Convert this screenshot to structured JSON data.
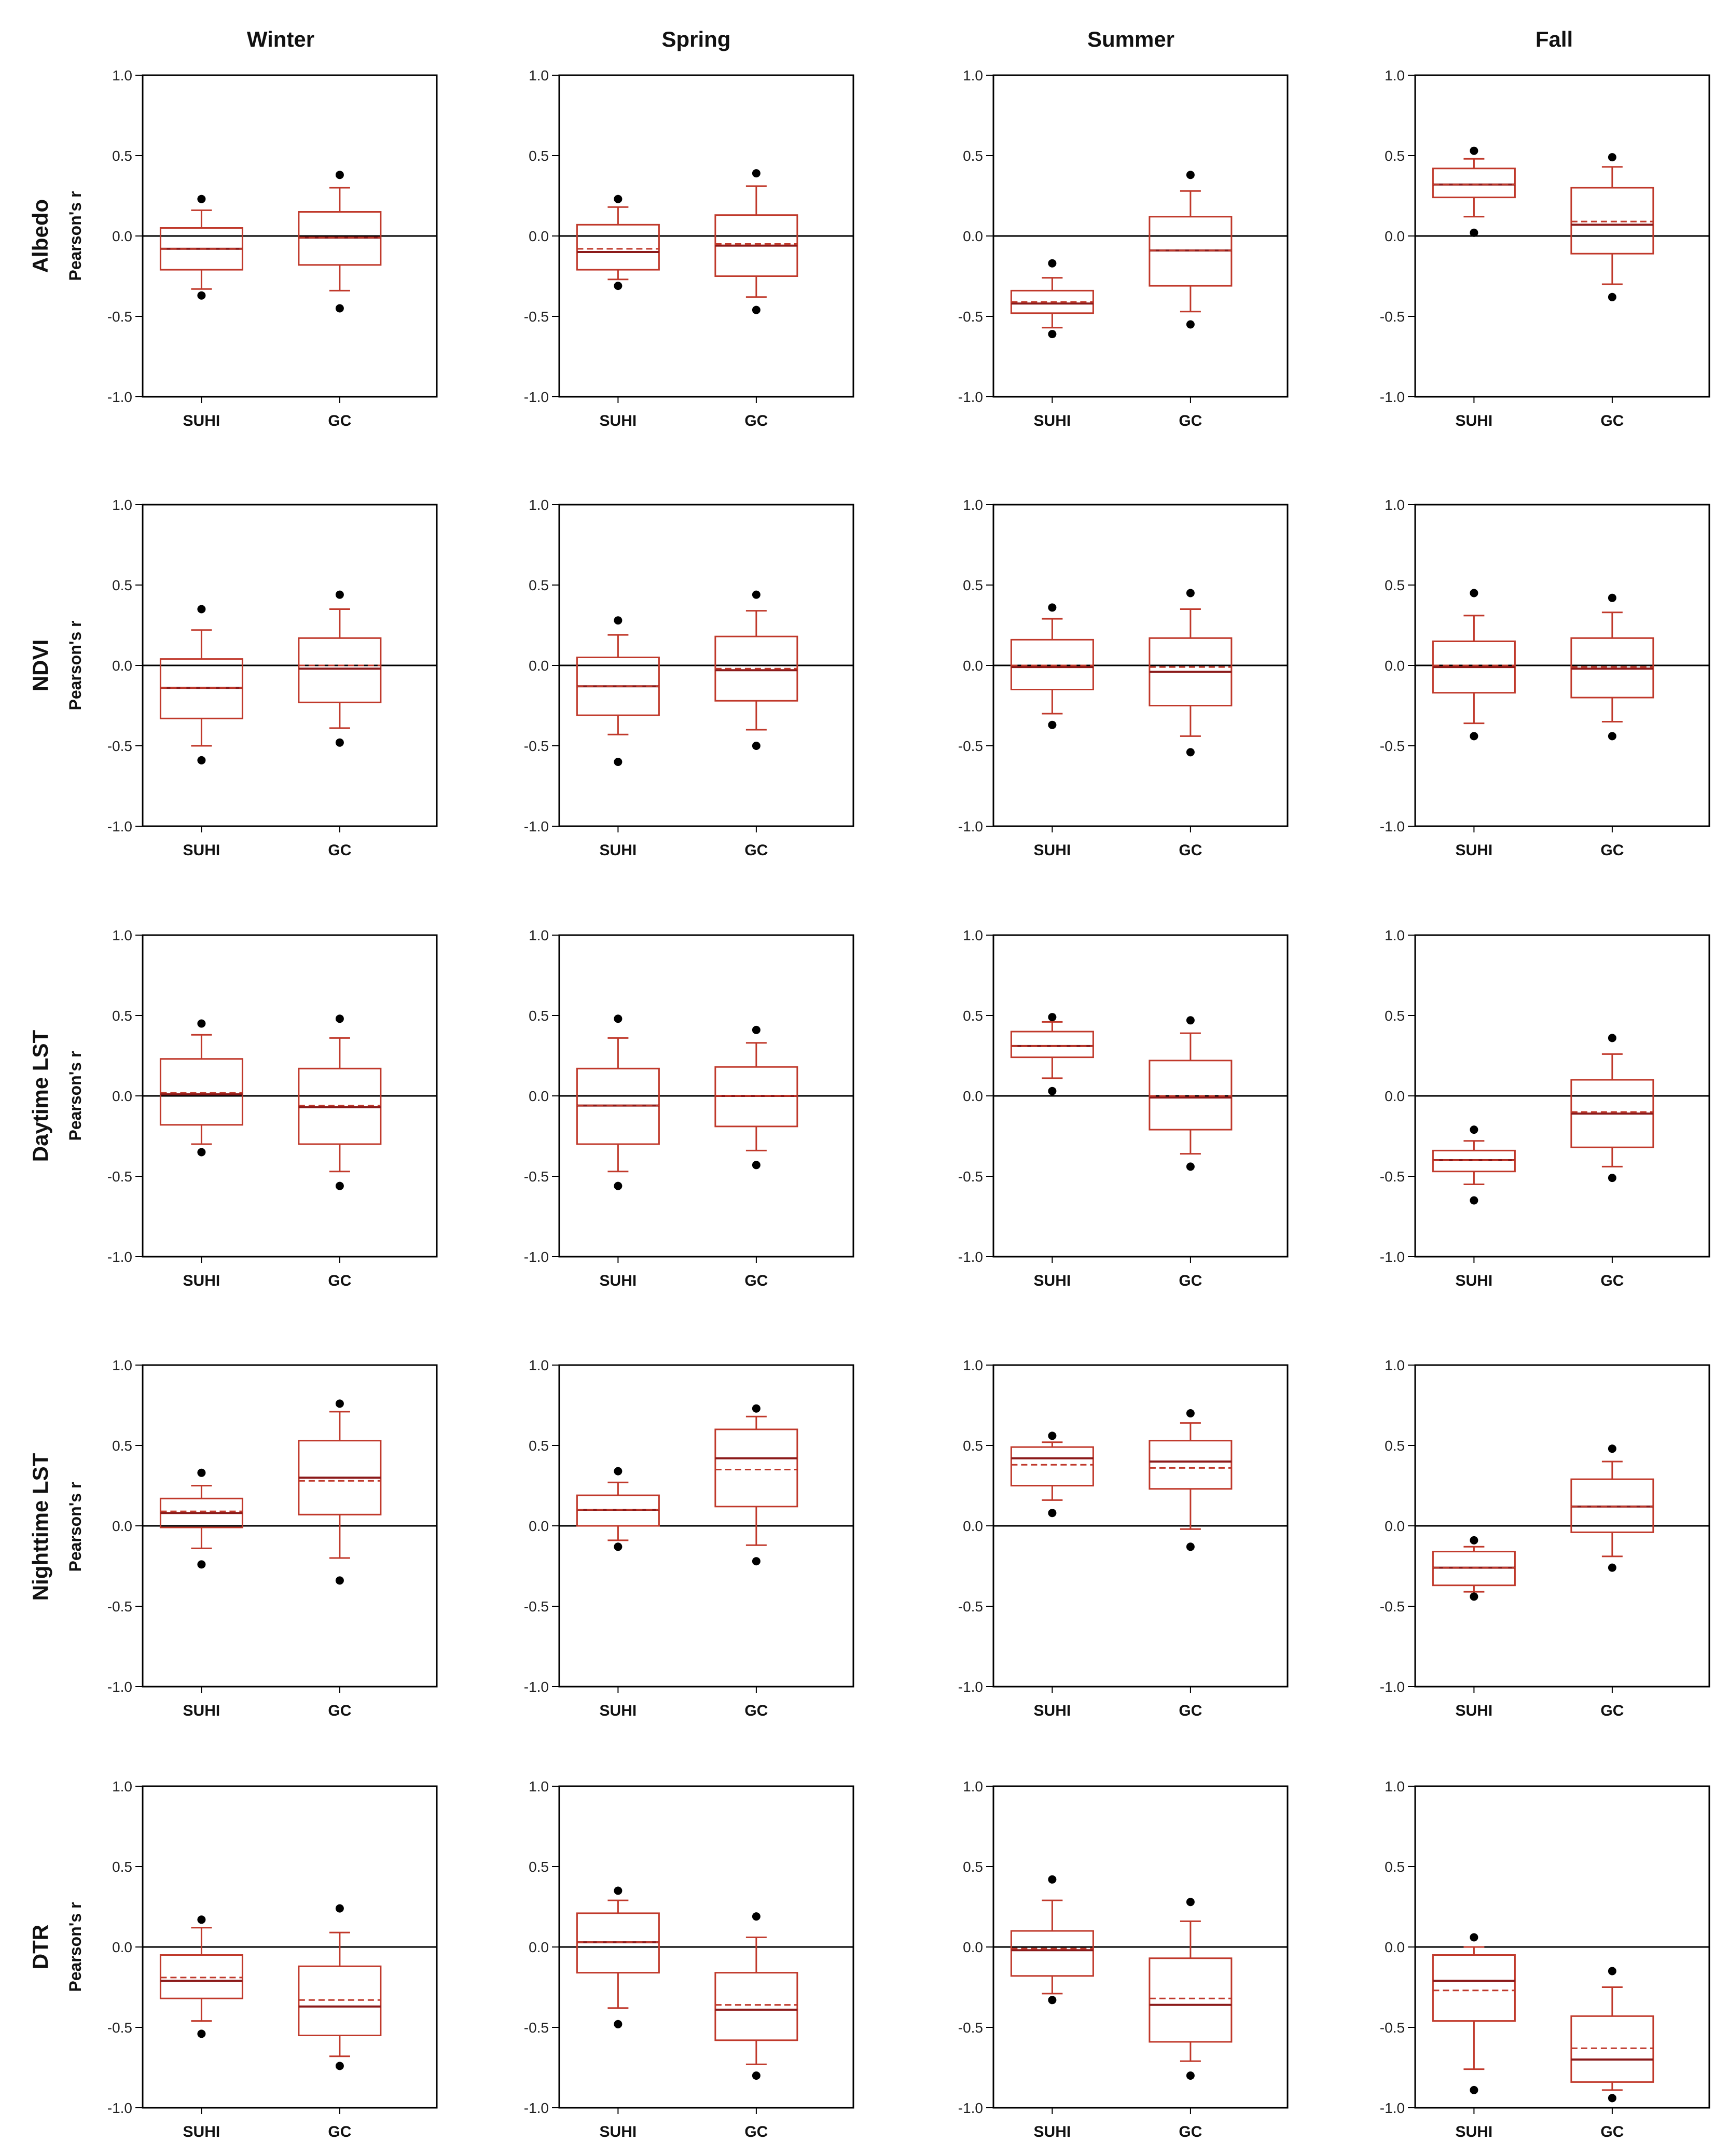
{
  "figure": {
    "columns": [
      "Winter",
      "Spring",
      "Summer",
      "Fall"
    ],
    "row_axis_label": "Pearson's r"
  },
  "colors": {
    "box": "#c0392b",
    "median_dark": "#8b1a1a",
    "outlier": "#000000",
    "axis": "#000000"
  },
  "chart_data": [
    {
      "type": "box",
      "row": "Albedo",
      "season": "Winter",
      "title": "Albedo — Winter",
      "ylabel": "Pearson's r",
      "ylim": [
        -1,
        1
      ],
      "yticks": [
        "1.0",
        "0.5",
        "0.0",
        "-0.5",
        "-1.0"
      ],
      "categories": [
        "SUHI",
        "GC"
      ],
      "boxes": [
        {
          "q1": -0.21,
          "q3": 0.05,
          "median": -0.08,
          "mean": -0.08,
          "whisker_low": -0.33,
          "whisker_high": 0.16,
          "outliers": [
            0.23,
            -0.37
          ]
        },
        {
          "q1": -0.18,
          "q3": 0.15,
          "median": -0.01,
          "mean": -0.01,
          "whisker_low": -0.34,
          "whisker_high": 0.3,
          "outliers": [
            0.38,
            -0.45
          ]
        }
      ]
    },
    {
      "type": "box",
      "row": "Albedo",
      "season": "Spring",
      "title": "Albedo — Spring",
      "ylabel": "Pearson's r",
      "ylim": [
        -1,
        1
      ],
      "yticks": [
        "1.0",
        "0.5",
        "0.0",
        "-0.5",
        "-1.0"
      ],
      "categories": [
        "SUHI",
        "GC"
      ],
      "boxes": [
        {
          "q1": -0.21,
          "q3": 0.07,
          "median": -0.1,
          "mean": -0.08,
          "whisker_low": -0.27,
          "whisker_high": 0.18,
          "outliers": [
            0.23,
            -0.31
          ]
        },
        {
          "q1": -0.25,
          "q3": 0.13,
          "median": -0.06,
          "mean": -0.05,
          "whisker_low": -0.38,
          "whisker_high": 0.31,
          "outliers": [
            0.39,
            -0.46
          ]
        }
      ]
    },
    {
      "type": "box",
      "row": "Albedo",
      "season": "Summer",
      "title": "Albedo — Summer",
      "ylabel": "Pearson's r",
      "ylim": [
        -1,
        1
      ],
      "yticks": [
        "1.0",
        "0.5",
        "0.0",
        "-0.5",
        "-1.0"
      ],
      "categories": [
        "SUHI",
        "GC"
      ],
      "boxes": [
        {
          "q1": -0.48,
          "q3": -0.34,
          "median": -0.42,
          "mean": -0.41,
          "whisker_low": -0.57,
          "whisker_high": -0.26,
          "outliers": [
            -0.17,
            -0.61
          ]
        },
        {
          "q1": -0.31,
          "q3": 0.12,
          "median": -0.09,
          "mean": -0.09,
          "whisker_low": -0.47,
          "whisker_high": 0.28,
          "outliers": [
            0.38,
            -0.55
          ]
        }
      ]
    },
    {
      "type": "box",
      "row": "Albedo",
      "season": "Fall",
      "title": "Albedo — Fall",
      "ylabel": "Pearson's r",
      "ylim": [
        -1,
        1
      ],
      "yticks": [
        "1.0",
        "0.5",
        "0.0",
        "-0.5",
        "-1.0"
      ],
      "categories": [
        "SUHI",
        "GC"
      ],
      "boxes": [
        {
          "q1": 0.24,
          "q3": 0.42,
          "median": 0.32,
          "mean": 0.32,
          "whisker_low": 0.12,
          "whisker_high": 0.48,
          "outliers": [
            0.53,
            0.02
          ]
        },
        {
          "q1": -0.11,
          "q3": 0.3,
          "median": 0.07,
          "mean": 0.09,
          "whisker_low": -0.3,
          "whisker_high": 0.43,
          "outliers": [
            0.49,
            -0.38
          ]
        }
      ]
    },
    {
      "type": "box",
      "row": "NDVI",
      "season": "Winter",
      "title": "NDVI — Winter",
      "ylabel": "Pearson's r",
      "ylim": [
        -1,
        1
      ],
      "yticks": [
        "1.0",
        "0.5",
        "0.0",
        "-0.5",
        "-1.0"
      ],
      "categories": [
        "SUHI",
        "GC"
      ],
      "boxes": [
        {
          "q1": -0.33,
          "q3": 0.04,
          "median": -0.14,
          "mean": -0.14,
          "whisker_low": -0.5,
          "whisker_high": 0.22,
          "outliers": [
            0.35,
            -0.59
          ]
        },
        {
          "q1": -0.23,
          "q3": 0.17,
          "median": -0.02,
          "mean": 0.0,
          "whisker_low": -0.39,
          "whisker_high": 0.35,
          "outliers": [
            0.44,
            -0.48
          ]
        }
      ]
    },
    {
      "type": "box",
      "row": "NDVI",
      "season": "Spring",
      "title": "NDVI — Spring",
      "ylabel": "Pearson's r",
      "ylim": [
        -1,
        1
      ],
      "yticks": [
        "1.0",
        "0.5",
        "0.0",
        "-0.5",
        "-1.0"
      ],
      "categories": [
        "SUHI",
        "GC"
      ],
      "boxes": [
        {
          "q1": -0.31,
          "q3": 0.05,
          "median": -0.13,
          "mean": -0.13,
          "whisker_low": -0.43,
          "whisker_high": 0.19,
          "outliers": [
            0.28,
            -0.6
          ]
        },
        {
          "q1": -0.22,
          "q3": 0.18,
          "median": -0.03,
          "mean": -0.02,
          "whisker_low": -0.4,
          "whisker_high": 0.34,
          "outliers": [
            0.44,
            -0.5
          ]
        }
      ]
    },
    {
      "type": "box",
      "row": "NDVI",
      "season": "Summer",
      "title": "NDVI — Summer",
      "ylabel": "Pearson's r",
      "ylim": [
        -1,
        1
      ],
      "yticks": [
        "1.0",
        "0.5",
        "0.0",
        "-0.5",
        "-1.0"
      ],
      "categories": [
        "SUHI",
        "GC"
      ],
      "boxes": [
        {
          "q1": -0.15,
          "q3": 0.16,
          "median": -0.01,
          "mean": 0.0,
          "whisker_low": -0.3,
          "whisker_high": 0.29,
          "outliers": [
            0.36,
            -0.37
          ]
        },
        {
          "q1": -0.25,
          "q3": 0.17,
          "median": -0.04,
          "mean": -0.01,
          "whisker_low": -0.44,
          "whisker_high": 0.35,
          "outliers": [
            0.45,
            -0.54
          ]
        }
      ]
    },
    {
      "type": "box",
      "row": "NDVI",
      "season": "Fall",
      "title": "NDVI — Fall",
      "ylabel": "Pearson's r",
      "ylim": [
        -1,
        1
      ],
      "yticks": [
        "1.0",
        "0.5",
        "0.0",
        "-0.5",
        "-1.0"
      ],
      "categories": [
        "SUHI",
        "GC"
      ],
      "boxes": [
        {
          "q1": -0.17,
          "q3": 0.15,
          "median": -0.01,
          "mean": 0.0,
          "whisker_low": -0.36,
          "whisker_high": 0.31,
          "outliers": [
            0.45,
            -0.44
          ]
        },
        {
          "q1": -0.2,
          "q3": 0.17,
          "median": -0.02,
          "mean": -0.01,
          "whisker_low": -0.35,
          "whisker_high": 0.33,
          "outliers": [
            0.42,
            -0.44
          ]
        }
      ]
    },
    {
      "type": "box",
      "row": "Daytime LST",
      "season": "Winter",
      "title": "Daytime LST — Winter",
      "ylabel": "Pearson's r",
      "ylim": [
        -1,
        1
      ],
      "yticks": [
        "1.0",
        "0.5",
        "0.0",
        "-0.5",
        "-1.0"
      ],
      "categories": [
        "SUHI",
        "GC"
      ],
      "boxes": [
        {
          "q1": -0.18,
          "q3": 0.23,
          "median": 0.01,
          "mean": 0.02,
          "whisker_low": -0.3,
          "whisker_high": 0.38,
          "outliers": [
            0.45,
            -0.35
          ]
        },
        {
          "q1": -0.3,
          "q3": 0.17,
          "median": -0.07,
          "mean": -0.06,
          "whisker_low": -0.47,
          "whisker_high": 0.36,
          "outliers": [
            0.48,
            -0.56
          ]
        }
      ]
    },
    {
      "type": "box",
      "row": "Daytime LST",
      "season": "Spring",
      "title": "Daytime LST — Spring",
      "ylabel": "Pearson's r",
      "ylim": [
        -1,
        1
      ],
      "yticks": [
        "1.0",
        "0.5",
        "0.0",
        "-0.5",
        "-1.0"
      ],
      "categories": [
        "SUHI",
        "GC"
      ],
      "boxes": [
        {
          "q1": -0.3,
          "q3": 0.17,
          "median": -0.06,
          "mean": -0.06,
          "whisker_low": -0.47,
          "whisker_high": 0.36,
          "outliers": [
            0.48,
            -0.56
          ]
        },
        {
          "q1": -0.19,
          "q3": 0.18,
          "median": 0.0,
          "mean": 0.0,
          "whisker_low": -0.34,
          "whisker_high": 0.33,
          "outliers": [
            0.41,
            -0.43
          ]
        }
      ]
    },
    {
      "type": "box",
      "row": "Daytime LST",
      "season": "Summer",
      "title": "Daytime LST — Summer",
      "ylabel": "Pearson's r",
      "ylim": [
        -1,
        1
      ],
      "yticks": [
        "1.0",
        "0.5",
        "0.0",
        "-0.5",
        "-1.0"
      ],
      "categories": [
        "SUHI",
        "GC"
      ],
      "boxes": [
        {
          "q1": 0.24,
          "q3": 0.4,
          "median": 0.31,
          "mean": 0.31,
          "whisker_low": 0.11,
          "whisker_high": 0.46,
          "outliers": [
            0.49,
            0.03
          ]
        },
        {
          "q1": -0.21,
          "q3": 0.22,
          "median": -0.01,
          "mean": 0.0,
          "whisker_low": -0.36,
          "whisker_high": 0.39,
          "outliers": [
            0.47,
            -0.44
          ]
        }
      ]
    },
    {
      "type": "box",
      "row": "Daytime LST",
      "season": "Fall",
      "title": "Daytime LST — Fall",
      "ylabel": "Pearson's r",
      "ylim": [
        -1,
        1
      ],
      "yticks": [
        "1.0",
        "0.5",
        "0.0",
        "-0.5",
        "-1.0"
      ],
      "categories": [
        "SUHI",
        "GC"
      ],
      "boxes": [
        {
          "q1": -0.47,
          "q3": -0.34,
          "median": -0.4,
          "mean": -0.4,
          "whisker_low": -0.55,
          "whisker_high": -0.28,
          "outliers": [
            -0.21,
            -0.65
          ]
        },
        {
          "q1": -0.32,
          "q3": 0.1,
          "median": -0.11,
          "mean": -0.1,
          "whisker_low": -0.44,
          "whisker_high": 0.26,
          "outliers": [
            0.36,
            -0.51
          ]
        }
      ]
    },
    {
      "type": "box",
      "row": "Nighttime LST",
      "season": "Winter",
      "title": "Nighttime LST — Winter",
      "ylabel": "Pearson's r",
      "ylim": [
        -1,
        1
      ],
      "yticks": [
        "1.0",
        "0.5",
        "0.0",
        "-0.5",
        "-1.0"
      ],
      "categories": [
        "SUHI",
        "GC"
      ],
      "boxes": [
        {
          "q1": -0.01,
          "q3": 0.17,
          "median": 0.08,
          "mean": 0.09,
          "whisker_low": -0.14,
          "whisker_high": 0.25,
          "outliers": [
            0.33,
            -0.24
          ]
        },
        {
          "q1": 0.07,
          "q3": 0.53,
          "median": 0.3,
          "mean": 0.28,
          "whisker_low": -0.2,
          "whisker_high": 0.71,
          "outliers": [
            0.76,
            -0.34
          ]
        }
      ]
    },
    {
      "type": "box",
      "row": "Nighttime LST",
      "season": "Spring",
      "title": "Nighttime LST — Spring",
      "ylabel": "Pearson's r",
      "ylim": [
        -1,
        1
      ],
      "yticks": [
        "1.0",
        "0.5",
        "0.0",
        "-0.5",
        "-1.0"
      ],
      "categories": [
        "SUHI",
        "GC"
      ],
      "boxes": [
        {
          "q1": 0.0,
          "q3": 0.19,
          "median": 0.1,
          "mean": 0.1,
          "whisker_low": -0.09,
          "whisker_high": 0.27,
          "outliers": [
            0.34,
            -0.13
          ]
        },
        {
          "q1": 0.12,
          "q3": 0.6,
          "median": 0.42,
          "mean": 0.35,
          "whisker_low": -0.12,
          "whisker_high": 0.68,
          "outliers": [
            0.73,
            -0.22
          ]
        }
      ]
    },
    {
      "type": "box",
      "row": "Nighttime LST",
      "season": "Summer",
      "title": "Nighttime LST — Summer",
      "ylabel": "Pearson's r",
      "ylim": [
        -1,
        1
      ],
      "yticks": [
        "1.0",
        "0.5",
        "0.0",
        "-0.5",
        "-1.0"
      ],
      "categories": [
        "SUHI",
        "GC"
      ],
      "boxes": [
        {
          "q1": 0.25,
          "q3": 0.49,
          "median": 0.42,
          "mean": 0.38,
          "whisker_low": 0.16,
          "whisker_high": 0.52,
          "outliers": [
            0.56,
            0.08
          ]
        },
        {
          "q1": 0.23,
          "q3": 0.53,
          "median": 0.4,
          "mean": 0.36,
          "whisker_low": -0.02,
          "whisker_high": 0.64,
          "outliers": [
            0.7,
            -0.13
          ]
        }
      ]
    },
    {
      "type": "box",
      "row": "Nighttime LST",
      "season": "Fall",
      "title": "Nighttime LST — Fall",
      "ylabel": "Pearson's r",
      "ylim": [
        -1,
        1
      ],
      "yticks": [
        "1.0",
        "0.5",
        "0.0",
        "-0.5",
        "-1.0"
      ],
      "categories": [
        "SUHI",
        "GC"
      ],
      "boxes": [
        {
          "q1": -0.37,
          "q3": -0.16,
          "median": -0.26,
          "mean": -0.26,
          "whisker_low": -0.41,
          "whisker_high": -0.13,
          "outliers": [
            -0.09,
            -0.44
          ]
        },
        {
          "q1": -0.04,
          "q3": 0.29,
          "median": 0.12,
          "mean": 0.12,
          "whisker_low": -0.19,
          "whisker_high": 0.4,
          "outliers": [
            0.48,
            -0.26
          ]
        }
      ]
    },
    {
      "type": "box",
      "row": "DTR",
      "season": "Winter",
      "title": "DTR — Winter",
      "ylabel": "Pearson's r",
      "ylim": [
        -1,
        1
      ],
      "yticks": [
        "1.0",
        "0.5",
        "0.0",
        "-0.5",
        "-1.0"
      ],
      "categories": [
        "SUHI",
        "GC"
      ],
      "boxes": [
        {
          "q1": -0.32,
          "q3": -0.05,
          "median": -0.21,
          "mean": -0.19,
          "whisker_low": -0.46,
          "whisker_high": 0.12,
          "outliers": [
            0.17,
            -0.54
          ]
        },
        {
          "q1": -0.55,
          "q3": -0.12,
          "median": -0.37,
          "mean": -0.33,
          "whisker_low": -0.68,
          "whisker_high": 0.09,
          "outliers": [
            0.24,
            -0.74
          ]
        }
      ]
    },
    {
      "type": "box",
      "row": "DTR",
      "season": "Spring",
      "title": "DTR — Spring",
      "ylabel": "Pearson's r",
      "ylim": [
        -1,
        1
      ],
      "yticks": [
        "1.0",
        "0.5",
        "0.0",
        "-0.5",
        "-1.0"
      ],
      "categories": [
        "SUHI",
        "GC"
      ],
      "boxes": [
        {
          "q1": -0.16,
          "q3": 0.21,
          "median": 0.03,
          "mean": 0.03,
          "whisker_low": -0.38,
          "whisker_high": 0.29,
          "outliers": [
            0.35,
            -0.48
          ]
        },
        {
          "q1": -0.58,
          "q3": -0.16,
          "median": -0.39,
          "mean": -0.36,
          "whisker_low": -0.73,
          "whisker_high": 0.06,
          "outliers": [
            0.19,
            -0.8
          ]
        }
      ]
    },
    {
      "type": "box",
      "row": "DTR",
      "season": "Summer",
      "title": "DTR — Summer",
      "ylabel": "Pearson's r",
      "ylim": [
        -1,
        1
      ],
      "yticks": [
        "1.0",
        "0.5",
        "0.0",
        "-0.5",
        "-1.0"
      ],
      "categories": [
        "SUHI",
        "GC"
      ],
      "boxes": [
        {
          "q1": -0.18,
          "q3": 0.1,
          "median": -0.02,
          "mean": -0.01,
          "whisker_low": -0.29,
          "whisker_high": 0.29,
          "outliers": [
            0.42,
            -0.33
          ]
        },
        {
          "q1": -0.59,
          "q3": -0.07,
          "median": -0.36,
          "mean": -0.32,
          "whisker_low": -0.71,
          "whisker_high": 0.16,
          "outliers": [
            0.28,
            -0.8
          ]
        }
      ]
    },
    {
      "type": "box",
      "row": "DTR",
      "season": "Fall",
      "title": "DTR — Fall",
      "ylabel": "Pearson's r",
      "ylim": [
        -1,
        1
      ],
      "yticks": [
        "1.0",
        "0.5",
        "0.0",
        "-0.5",
        "-1.0"
      ],
      "categories": [
        "SUHI",
        "GC"
      ],
      "boxes": [
        {
          "q1": -0.46,
          "q3": -0.05,
          "median": -0.21,
          "mean": -0.27,
          "whisker_low": -0.76,
          "whisker_high": 0.0,
          "outliers": [
            0.06,
            -0.89
          ]
        },
        {
          "q1": -0.84,
          "q3": -0.43,
          "median": -0.7,
          "mean": -0.63,
          "whisker_low": -0.89,
          "whisker_high": -0.25,
          "outliers": [
            -0.15,
            -0.94
          ]
        }
      ]
    }
  ]
}
